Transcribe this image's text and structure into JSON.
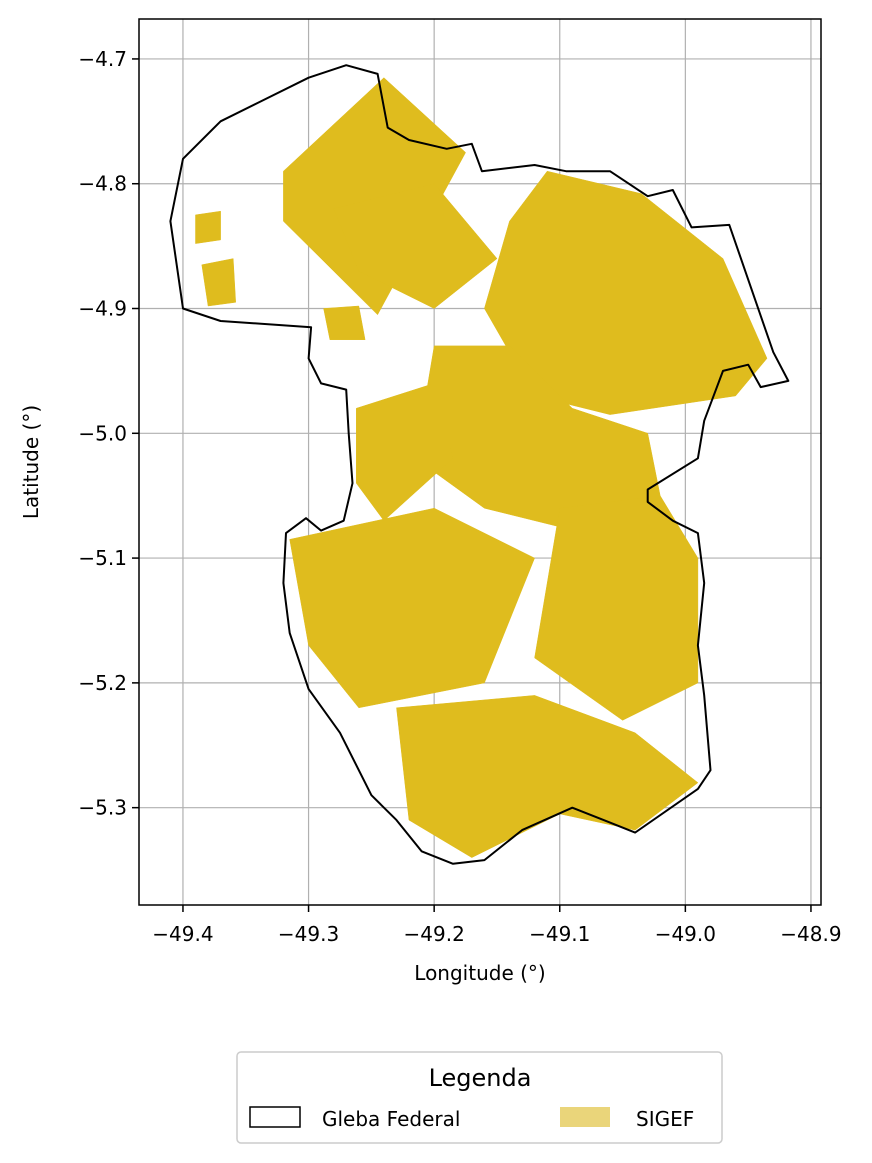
{
  "colors": {
    "parcel_fill": "#dfbc1e",
    "legend_parcel_fill": "#ead57a",
    "boundary_stroke": "#000000",
    "grid": "#b0b0b0",
    "background": "#ffffff"
  },
  "chart_data": {
    "type": "map",
    "xlabel": "Longitude (°)",
    "ylabel": "Latitude (°)",
    "xlim": [
      -49.435,
      -48.892
    ],
    "ylim": [
      -5.378,
      -4.668
    ],
    "x_ticks": [
      -49.4,
      -49.3,
      -49.2,
      -49.1,
      -49.0,
      -48.9
    ],
    "x_tick_labels": [
      "−49.4",
      "−49.3",
      "−49.2",
      "−49.1",
      "−49.0",
      "−48.9"
    ],
    "y_ticks": [
      -4.7,
      -4.8,
      -4.9,
      -5.0,
      -5.1,
      -5.2,
      -5.3
    ],
    "y_tick_labels": [
      "−4.7",
      "−4.8",
      "−4.9",
      "−5.0",
      "−5.1",
      "−5.2",
      "−5.3"
    ],
    "grid": true,
    "legend": {
      "title": "Legenda",
      "placement": "bottom-center, below axes",
      "entries": [
        {
          "label": "Gleba Federal",
          "style": "outline"
        },
        {
          "label": "SIGEF",
          "style": "filled"
        }
      ]
    },
    "boundary": [
      [
        -49.27,
        -4.705
      ],
      [
        -49.245,
        -4.712
      ],
      [
        -49.237,
        -4.755
      ],
      [
        -49.22,
        -4.765
      ],
      [
        -49.19,
        -4.772
      ],
      [
        -49.17,
        -4.768
      ],
      [
        -49.162,
        -4.79
      ],
      [
        -49.12,
        -4.785
      ],
      [
        -49.095,
        -4.79
      ],
      [
        -49.06,
        -4.79
      ],
      [
        -49.03,
        -4.81
      ],
      [
        -49.01,
        -4.805
      ],
      [
        -48.995,
        -4.835
      ],
      [
        -48.965,
        -4.833
      ],
      [
        -48.93,
        -4.935
      ],
      [
        -48.918,
        -4.958
      ],
      [
        -48.94,
        -4.963
      ],
      [
        -48.95,
        -4.945
      ],
      [
        -48.97,
        -4.95
      ],
      [
        -48.985,
        -4.99
      ],
      [
        -48.99,
        -5.02
      ],
      [
        -49.03,
        -5.045
      ],
      [
        -49.03,
        -5.055
      ],
      [
        -49.01,
        -5.07
      ],
      [
        -48.99,
        -5.08
      ],
      [
        -48.985,
        -5.12
      ],
      [
        -48.99,
        -5.17
      ],
      [
        -48.985,
        -5.21
      ],
      [
        -48.98,
        -5.27
      ],
      [
        -48.99,
        -5.285
      ],
      [
        -49.04,
        -5.32
      ],
      [
        -49.065,
        -5.31
      ],
      [
        -49.09,
        -5.3
      ],
      [
        -49.13,
        -5.318
      ],
      [
        -49.16,
        -5.342
      ],
      [
        -49.185,
        -5.345
      ],
      [
        -49.21,
        -5.335
      ],
      [
        -49.23,
        -5.31
      ],
      [
        -49.25,
        -5.29
      ],
      [
        -49.275,
        -5.24
      ],
      [
        -49.3,
        -5.205
      ],
      [
        -49.315,
        -5.16
      ],
      [
        -49.32,
        -5.12
      ],
      [
        -49.318,
        -5.08
      ],
      [
        -49.302,
        -5.068
      ],
      [
        -49.29,
        -5.078
      ],
      [
        -49.272,
        -5.07
      ],
      [
        -49.265,
        -5.04
      ],
      [
        -49.268,
        -5.0
      ],
      [
        -49.27,
        -4.965
      ],
      [
        -49.29,
        -4.96
      ],
      [
        -49.3,
        -4.94
      ],
      [
        -49.298,
        -4.915
      ],
      [
        -49.37,
        -4.91
      ],
      [
        -49.4,
        -4.9
      ],
      [
        -49.41,
        -4.83
      ],
      [
        -49.4,
        -4.78
      ],
      [
        -49.37,
        -4.75
      ],
      [
        -49.34,
        -4.735
      ],
      [
        -49.3,
        -4.715
      ]
    ],
    "parcels": [
      {
        "region": "northwest lobe",
        "polygon": [
          [
            -49.32,
            -4.79
          ],
          [
            -49.24,
            -4.715
          ],
          [
            -49.175,
            -4.775
          ],
          [
            -49.245,
            -4.905
          ],
          [
            -49.32,
            -4.83
          ]
        ]
      },
      {
        "region": "west-center strip",
        "polygon": [
          [
            -49.288,
            -4.9
          ],
          [
            -49.26,
            -4.898
          ],
          [
            -49.255,
            -4.925
          ],
          [
            -49.283,
            -4.925
          ]
        ]
      },
      {
        "region": "north-center",
        "polygon": [
          [
            -49.28,
            -4.82
          ],
          [
            -49.2,
            -4.8
          ],
          [
            -49.15,
            -4.86
          ],
          [
            -49.2,
            -4.9
          ],
          [
            -49.26,
            -4.87
          ]
        ]
      },
      {
        "region": "northeast",
        "polygon": [
          [
            -49.11,
            -4.79
          ],
          [
            -49.035,
            -4.808
          ],
          [
            -48.995,
            -4.84
          ],
          [
            -48.97,
            -4.86
          ],
          [
            -48.935,
            -4.94
          ],
          [
            -48.96,
            -4.97
          ],
          [
            -49.06,
            -4.985
          ],
          [
            -49.12,
            -4.97
          ],
          [
            -49.16,
            -4.9
          ],
          [
            -49.14,
            -4.83
          ]
        ]
      },
      {
        "region": "east-center",
        "polygon": [
          [
            -49.2,
            -4.93
          ],
          [
            -49.14,
            -4.93
          ],
          [
            -49.09,
            -4.98
          ],
          [
            -49.03,
            -5.0
          ],
          [
            -49.02,
            -5.05
          ],
          [
            -49.08,
            -5.08
          ],
          [
            -49.16,
            -5.06
          ],
          [
            -49.215,
            -5.02
          ]
        ]
      },
      {
        "region": "west-center",
        "polygon": [
          [
            -49.262,
            -4.98
          ],
          [
            -49.2,
            -4.96
          ],
          [
            -49.185,
            -5.02
          ],
          [
            -49.24,
            -5.07
          ],
          [
            -49.262,
            -5.04
          ]
        ]
      },
      {
        "region": "south-west",
        "polygon": [
          [
            -49.315,
            -5.085
          ],
          [
            -49.2,
            -5.06
          ],
          [
            -49.12,
            -5.1
          ],
          [
            -49.16,
            -5.2
          ],
          [
            -49.26,
            -5.22
          ],
          [
            -49.3,
            -5.17
          ]
        ]
      },
      {
        "region": "south-east",
        "polygon": [
          [
            -49.1,
            -5.06
          ],
          [
            -49.02,
            -5.05
          ],
          [
            -48.99,
            -5.1
          ],
          [
            -48.99,
            -5.2
          ],
          [
            -49.05,
            -5.23
          ],
          [
            -49.12,
            -5.18
          ]
        ]
      },
      {
        "region": "far south",
        "polygon": [
          [
            -49.23,
            -5.22
          ],
          [
            -49.12,
            -5.21
          ],
          [
            -49.04,
            -5.24
          ],
          [
            -48.99,
            -5.28
          ],
          [
            -49.04,
            -5.318
          ],
          [
            -49.1,
            -5.305
          ],
          [
            -49.17,
            -5.34
          ],
          [
            -49.22,
            -5.31
          ]
        ]
      },
      {
        "region": "northwest island",
        "polygon": [
          [
            -49.385,
            -4.865
          ],
          [
            -49.36,
            -4.86
          ],
          [
            -49.358,
            -4.895
          ],
          [
            -49.38,
            -4.898
          ]
        ]
      },
      {
        "region": "northwest island 2",
        "polygon": [
          [
            -49.39,
            -4.825
          ],
          [
            -49.37,
            -4.822
          ],
          [
            -49.37,
            -4.845
          ],
          [
            -49.39,
            -4.848
          ]
        ]
      }
    ]
  }
}
